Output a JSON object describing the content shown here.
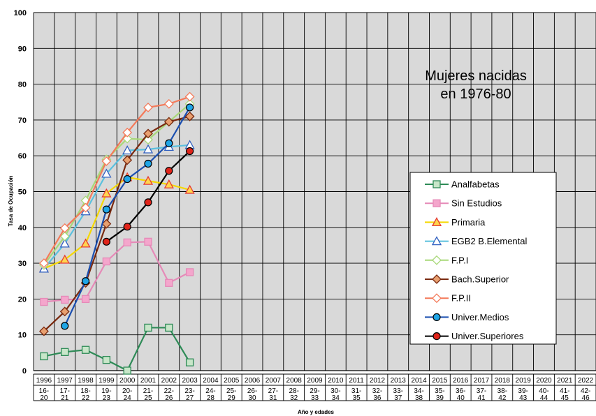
{
  "chart_data": {
    "type": "line",
    "title": "",
    "annotation": [
      "Mujeres nacidas",
      "en 1976-80"
    ],
    "xlabel": "Año y edades",
    "ylabel": "Tasa de Ocupación",
    "ylim": [
      0,
      100
    ],
    "yticks": [
      0,
      10,
      20,
      30,
      40,
      50,
      60,
      70,
      80,
      90,
      100
    ],
    "grid": true,
    "legend_position": "right",
    "years": [
      "1996",
      "1997",
      "1998",
      "1999",
      "2000",
      "2001",
      "2002",
      "2003",
      "2004",
      "2005",
      "2006",
      "2007",
      "2008",
      "2009",
      "2010",
      "2011",
      "2012",
      "2013",
      "2014",
      "2015",
      "2016",
      "2017",
      "2018",
      "2019",
      "2020",
      "2021",
      "2022"
    ],
    "ages": [
      [
        "16-",
        "20"
      ],
      [
        "17-",
        "21"
      ],
      [
        "18-",
        "22"
      ],
      [
        "19-",
        "23"
      ],
      [
        "20-",
        "24"
      ],
      [
        "21-",
        "25"
      ],
      [
        "22-",
        "26"
      ],
      [
        "23-",
        "27"
      ],
      [
        "24-",
        "28"
      ],
      [
        "25-",
        "29"
      ],
      [
        "26-",
        "30"
      ],
      [
        "27-",
        "31"
      ],
      [
        "28-",
        "32"
      ],
      [
        "29-",
        "33"
      ],
      [
        "30-",
        "34"
      ],
      [
        "31-",
        "35"
      ],
      [
        "32-",
        "36"
      ],
      [
        "33-",
        "37"
      ],
      [
        "34-",
        "38"
      ],
      [
        "35-",
        "39"
      ],
      [
        "36-",
        "40"
      ],
      [
        "37-",
        "41"
      ],
      [
        "38-",
        "42"
      ],
      [
        "39-",
        "43"
      ],
      [
        "40-",
        "44"
      ],
      [
        "41-",
        "45"
      ],
      [
        "42-",
        "46"
      ]
    ],
    "series": [
      {
        "name": "Analfabetas",
        "color": "#2e8b57",
        "fill": "#c8e6c9",
        "marker": "square",
        "values": [
          4,
          5.2,
          5.8,
          3,
          0,
          12,
          12,
          2.3
        ]
      },
      {
        "name": "Sin Estudios",
        "color": "#e68ab8",
        "fill": "#f4a6cc",
        "marker": "square",
        "values": [
          19.2,
          19.8,
          20,
          30.5,
          35.8,
          36,
          24.5,
          27.5
        ]
      },
      {
        "name": "Primaria",
        "color": "#f5d800",
        "fill": "#ffd54f",
        "stroke2": "#e53935",
        "marker": "triangle",
        "values": [
          28.5,
          31,
          35.5,
          49.5,
          54,
          53,
          52,
          50.5
        ]
      },
      {
        "name": "EGB2 B.Elemental",
        "color": "#5bc0de",
        "fill": "#ffffff",
        "stroke2": "#3060c0",
        "marker": "triangle",
        "values": [
          28.5,
          35.5,
          44.5,
          55,
          61.5,
          61.8,
          62.5,
          63
        ]
      },
      {
        "name": "F.P.I",
        "color": "#a8d878",
        "fill": "#ffffff",
        "marker": "diamond",
        "values": [
          29.5,
          37.5,
          47.5,
          59,
          64.8,
          64.5,
          69.5,
          74.5
        ]
      },
      {
        "name": "Bach.Superior",
        "color": "#7a2a10",
        "fill": "#e8a070",
        "marker": "diamond",
        "values": [
          11,
          16.5,
          24.5,
          41,
          58.8,
          66.2,
          69.5,
          71
        ]
      },
      {
        "name": "F.P.II",
        "color": "#f47a5a",
        "fill": "#ffffff",
        "marker": "diamond",
        "values": [
          30,
          39.8,
          45.5,
          58.5,
          66.5,
          73.5,
          74.5,
          76.5
        ]
      },
      {
        "name": "Univer.Medios",
        "color": "#1b4fb0",
        "fill": "#1fa5e6",
        "marker": "circle",
        "values": [
          null,
          12.5,
          25,
          45,
          53.5,
          57.8,
          63.5,
          73.5
        ]
      },
      {
        "name": "Univer.Superiores",
        "color": "#000000",
        "fill": "#e0241a",
        "marker": "circle",
        "values": [
          null,
          null,
          null,
          36,
          40.2,
          47,
          55.8,
          61.3
        ]
      }
    ]
  }
}
